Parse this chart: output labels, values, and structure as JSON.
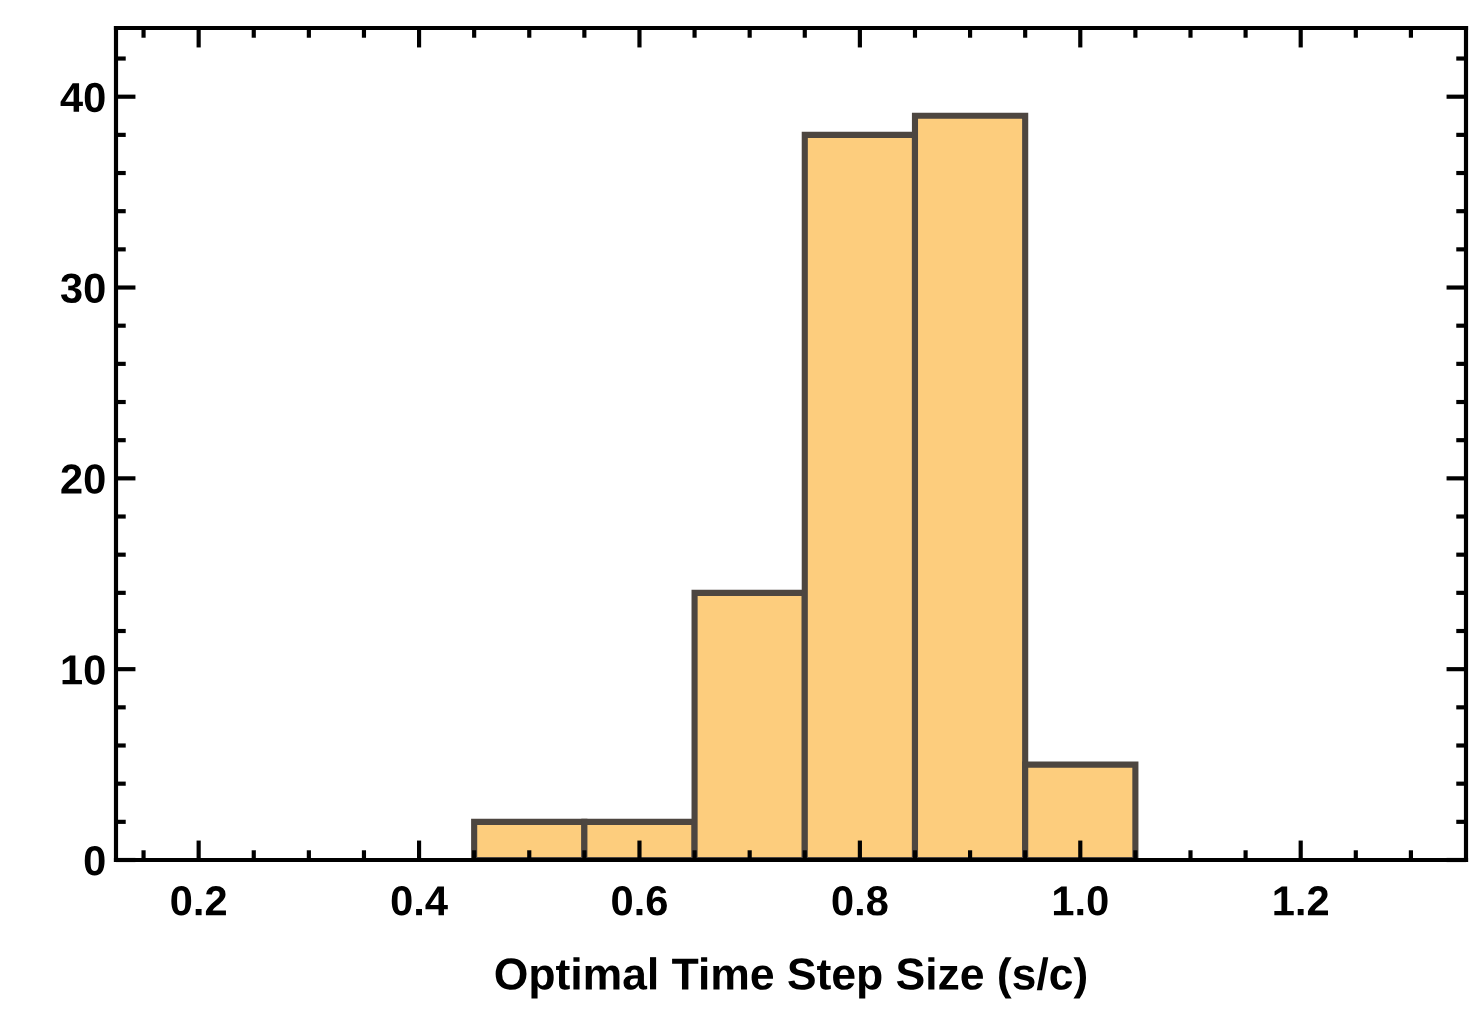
{
  "chart_data": {
    "type": "histogram",
    "xlabel": "Optimal Time Step Size (s/c)",
    "bins": [
      0.45,
      0.55,
      0.65,
      0.75,
      0.85,
      0.95,
      1.05
    ],
    "values": [
      2,
      2,
      14,
      38,
      39,
      5
    ],
    "color": "#fdcd7d",
    "xlim": [
      0.125,
      1.35
    ],
    "ylim": [
      0,
      43.6
    ],
    "xticks": [
      {
        "value": 0.15,
        "label": null
      },
      0.2,
      {
        "value": 0.25,
        "label": null
      },
      {
        "value": 0.3,
        "label": null
      },
      {
        "value": 0.35,
        "label": null
      },
      0.4,
      {
        "value": 0.45,
        "label": null
      },
      {
        "value": 0.5,
        "label": null
      },
      {
        "value": 0.55,
        "label": null
      },
      0.6,
      {
        "value": 0.65,
        "label": null
      },
      {
        "value": 0.7,
        "label": null
      },
      {
        "value": 0.75,
        "label": null
      },
      0.8,
      {
        "value": 0.85,
        "label": null
      },
      {
        "value": 0.9,
        "label": null
      },
      {
        "value": 0.95,
        "label": null
      },
      {
        "value": 1.0,
        "label": "1.0"
      },
      {
        "value": 1.05,
        "label": null
      },
      {
        "value": 1.1,
        "label": null
      },
      {
        "value": 1.15,
        "label": null
      },
      1.2,
      {
        "value": 1.25,
        "label": null
      },
      {
        "value": 1.3,
        "label": null
      }
    ],
    "yticks": [
      0,
      {
        "value": 2,
        "label": null
      },
      {
        "value": 4,
        "label": null
      },
      {
        "value": 6,
        "label": null
      },
      {
        "value": 8,
        "label": null
      },
      10,
      {
        "value": 12,
        "label": null
      },
      {
        "value": 14,
        "label": null
      },
      {
        "value": 16,
        "label": null
      },
      {
        "value": 18,
        "label": null
      },
      20,
      {
        "value": 22,
        "label": null
      },
      {
        "value": 24,
        "label": null
      },
      {
        "value": 26,
        "label": null
      },
      {
        "value": 28,
        "label": null
      },
      30,
      {
        "value": 32,
        "label": null
      },
      {
        "value": 34,
        "label": null
      },
      {
        "value": 36,
        "label": null
      },
      {
        "value": 38,
        "label": null
      },
      40,
      {
        "value": 42,
        "label": null
      }
    ],
    "grid": false
  }
}
